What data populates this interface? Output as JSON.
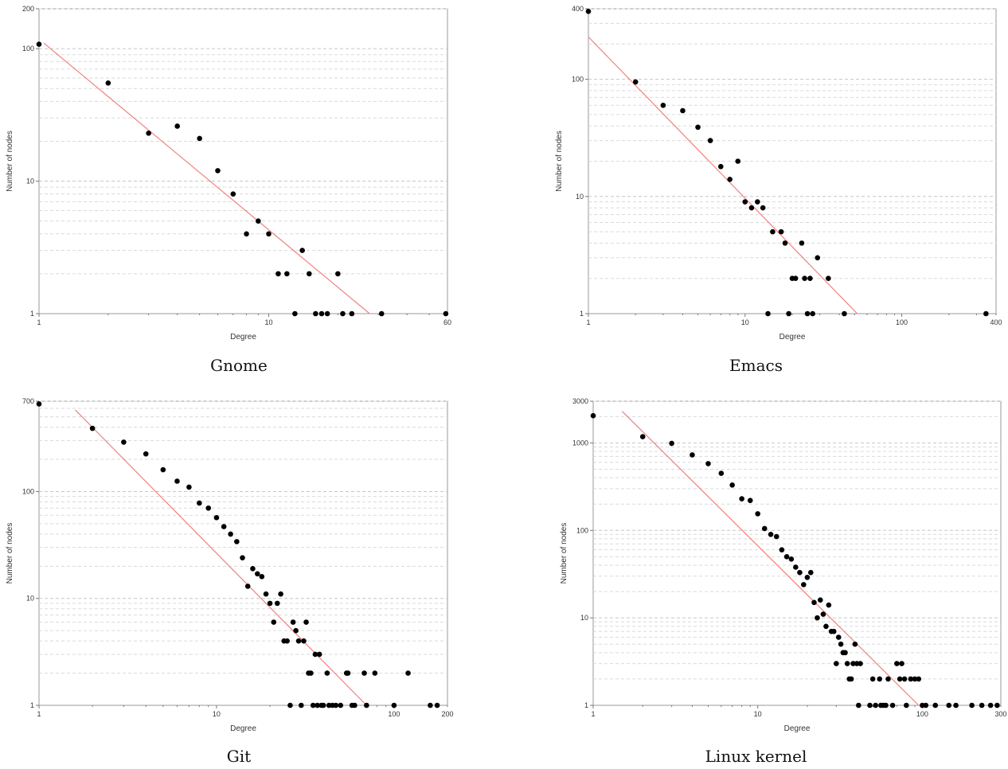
{
  "chart_data": [
    {
      "type": "scatter",
      "caption": "Gnome",
      "xlabel": "Degree",
      "ylabel": "Number of nodes",
      "xscale": "log",
      "yscale": "log",
      "xlim": [
        1,
        60
      ],
      "ylim": [
        1,
        200
      ],
      "xticks": [
        1,
        10,
        60
      ],
      "yticks": [
        1,
        10,
        100,
        200
      ],
      "grid": "horizontal-dashed",
      "series": [
        {
          "points": [
            [
              1,
              108
            ],
            [
              2,
              55
            ],
            [
              3,
              23
            ],
            [
              4,
              26
            ],
            [
              5,
              21
            ],
            [
              6,
              12
            ],
            [
              7,
              8
            ],
            [
              8,
              4
            ],
            [
              9,
              5
            ],
            [
              10,
              4
            ],
            [
              11,
              2
            ],
            [
              12,
              2
            ],
            [
              13,
              1
            ],
            [
              14,
              3
            ],
            [
              15,
              2
            ],
            [
              16,
              1
            ],
            [
              17,
              1
            ],
            [
              18,
              1
            ],
            [
              20,
              2
            ],
            [
              21,
              1
            ],
            [
              23,
              1
            ],
            [
              31,
              1
            ],
            [
              59,
              1
            ]
          ],
          "color": "#000000"
        }
      ],
      "fit_line": {
        "x": [
          1.05,
          27.5
        ],
        "y": [
          110,
          1
        ],
        "color": "#f08080"
      }
    },
    {
      "type": "scatter",
      "caption": "Emacs",
      "xlabel": "Degree",
      "ylabel": "Number of nodes",
      "xscale": "log",
      "yscale": "log",
      "xlim": [
        1,
        400
      ],
      "ylim": [
        1,
        400
      ],
      "xticks": [
        1,
        10,
        100,
        400
      ],
      "yticks": [
        1,
        10,
        100,
        400
      ],
      "grid": "horizontal-dashed",
      "series": [
        {
          "points": [
            [
              1,
              380
            ],
            [
              2,
              95
            ],
            [
              3,
              60
            ],
            [
              4,
              54
            ],
            [
              5,
              39
            ],
            [
              6,
              30
            ],
            [
              7,
              18
            ],
            [
              8,
              14
            ],
            [
              9,
              20
            ],
            [
              10,
              9
            ],
            [
              11,
              8
            ],
            [
              12,
              9
            ],
            [
              13,
              8
            ],
            [
              14,
              1
            ],
            [
              15,
              5
            ],
            [
              17,
              5
            ],
            [
              18,
              4
            ],
            [
              19,
              1
            ],
            [
              20,
              2
            ],
            [
              21,
              2
            ],
            [
              23,
              4
            ],
            [
              24,
              2
            ],
            [
              25,
              1
            ],
            [
              26,
              2
            ],
            [
              27,
              1
            ],
            [
              29,
              3
            ],
            [
              34,
              2
            ],
            [
              43,
              1
            ],
            [
              345,
              1
            ]
          ],
          "color": "#000000"
        }
      ],
      "fit_line": {
        "x": [
          1,
          52
        ],
        "y": [
          230,
          1
        ],
        "color": "#f08080"
      }
    },
    {
      "type": "scatter",
      "caption": "Git",
      "xlabel": "Degree",
      "ylabel": "Number of nodes",
      "xscale": "log",
      "yscale": "log",
      "xlim": [
        1,
        200
      ],
      "ylim": [
        1,
        700
      ],
      "xticks": [
        1,
        10,
        100,
        200
      ],
      "yticks": [
        1,
        10,
        100,
        700
      ],
      "grid": "horizontal-dashed",
      "series": [
        {
          "points": [
            [
              1,
              660
            ],
            [
              2,
              390
            ],
            [
              3,
              290
            ],
            [
              4,
              225
            ],
            [
              5,
              160
            ],
            [
              6,
              125
            ],
            [
              7,
              110
            ],
            [
              8,
              78
            ],
            [
              9,
              70
            ],
            [
              10,
              57
            ],
            [
              11,
              47
            ],
            [
              12,
              40
            ],
            [
              13,
              34
            ],
            [
              14,
              24
            ],
            [
              15,
              13
            ],
            [
              16,
              19
            ],
            [
              17,
              17
            ],
            [
              18,
              16
            ],
            [
              19,
              11
            ],
            [
              20,
              9
            ],
            [
              21,
              6
            ],
            [
              22,
              9
            ],
            [
              23,
              11
            ],
            [
              24,
              4
            ],
            [
              25,
              4
            ],
            [
              26,
              1
            ],
            [
              27,
              6
            ],
            [
              28,
              5
            ],
            [
              29,
              4
            ],
            [
              30,
              1
            ],
            [
              31,
              4
            ],
            [
              32,
              6
            ],
            [
              33,
              2
            ],
            [
              34,
              2
            ],
            [
              35,
              1
            ],
            [
              36,
              3
            ],
            [
              37,
              1
            ],
            [
              38,
              3
            ],
            [
              39,
              1
            ],
            [
              40,
              1
            ],
            [
              42,
              2
            ],
            [
              43,
              1
            ],
            [
              45,
              1
            ],
            [
              47,
              1
            ],
            [
              50,
              1
            ],
            [
              54,
              2
            ],
            [
              55,
              2
            ],
            [
              58,
              1
            ],
            [
              60,
              1
            ],
            [
              68,
              2
            ],
            [
              78,
              2
            ],
            [
              70,
              1
            ],
            [
              100,
              1
            ],
            [
              120,
              2
            ],
            [
              160,
              1
            ],
            [
              175,
              1
            ]
          ],
          "color": "#000000"
        }
      ],
      "fit_line": {
        "x": [
          1.6,
          70
        ],
        "y": [
          580,
          1
        ],
        "color": "#f08080"
      }
    },
    {
      "type": "scatter",
      "caption": "Linux kernel",
      "xlabel": "Degree",
      "ylabel": "Number of nodes",
      "xscale": "log",
      "yscale": "log",
      "xlim": [
        1,
        300
      ],
      "ylim": [
        1,
        3000
      ],
      "xticks": [
        1,
        10,
        100,
        300
      ],
      "yticks": [
        1,
        10,
        100,
        1000,
        3000
      ],
      "grid": "horizontal-dashed",
      "series": [
        {
          "points": [
            [
              1,
              2050
            ],
            [
              2,
              1180
            ],
            [
              3,
              990
            ],
            [
              4,
              730
            ],
            [
              5,
              580
            ],
            [
              6,
              450
            ],
            [
              7,
              330
            ],
            [
              8,
              230
            ],
            [
              9,
              220
            ],
            [
              10,
              155
            ],
            [
              11,
              105
            ],
            [
              12,
              90
            ],
            [
              13,
              85
            ],
            [
              14,
              60
            ],
            [
              15,
              50
            ],
            [
              16,
              47
            ],
            [
              17,
              38
            ],
            [
              18,
              33
            ],
            [
              19,
              24
            ],
            [
              20,
              29
            ],
            [
              21,
              33
            ],
            [
              22,
              15
            ],
            [
              23,
              10
            ],
            [
              24,
              16
            ],
            [
              25,
              11
            ],
            [
              26,
              8
            ],
            [
              27,
              14
            ],
            [
              28,
              7
            ],
            [
              29,
              7
            ],
            [
              30,
              3
            ],
            [
              31,
              6
            ],
            [
              32,
              5
            ],
            [
              33,
              4
            ],
            [
              34,
              4
            ],
            [
              35,
              3
            ],
            [
              36,
              2
            ],
            [
              37,
              2
            ],
            [
              38,
              3
            ],
            [
              39,
              5
            ],
            [
              40,
              3
            ],
            [
              41,
              1
            ],
            [
              42,
              3
            ],
            [
              48,
              1
            ],
            [
              50,
              2
            ],
            [
              52,
              1
            ],
            [
              55,
              2
            ],
            [
              56,
              1
            ],
            [
              58,
              1
            ],
            [
              60,
              1
            ],
            [
              62,
              2
            ],
            [
              66,
              1
            ],
            [
              70,
              3
            ],
            [
              73,
              2
            ],
            [
              75,
              3
            ],
            [
              78,
              2
            ],
            [
              80,
              1
            ],
            [
              85,
              2
            ],
            [
              90,
              2
            ],
            [
              95,
              2
            ],
            [
              100,
              1
            ],
            [
              105,
              1
            ],
            [
              120,
              1
            ],
            [
              145,
              1
            ],
            [
              160,
              1
            ],
            [
              200,
              1
            ],
            [
              230,
              1
            ],
            [
              260,
              1
            ],
            [
              285,
              1
            ]
          ],
          "color": "#000000"
        }
      ],
      "fit_line": {
        "x": [
          1.5,
          95
        ],
        "y": [
          2300,
          1
        ],
        "color": "#f08080"
      }
    }
  ]
}
